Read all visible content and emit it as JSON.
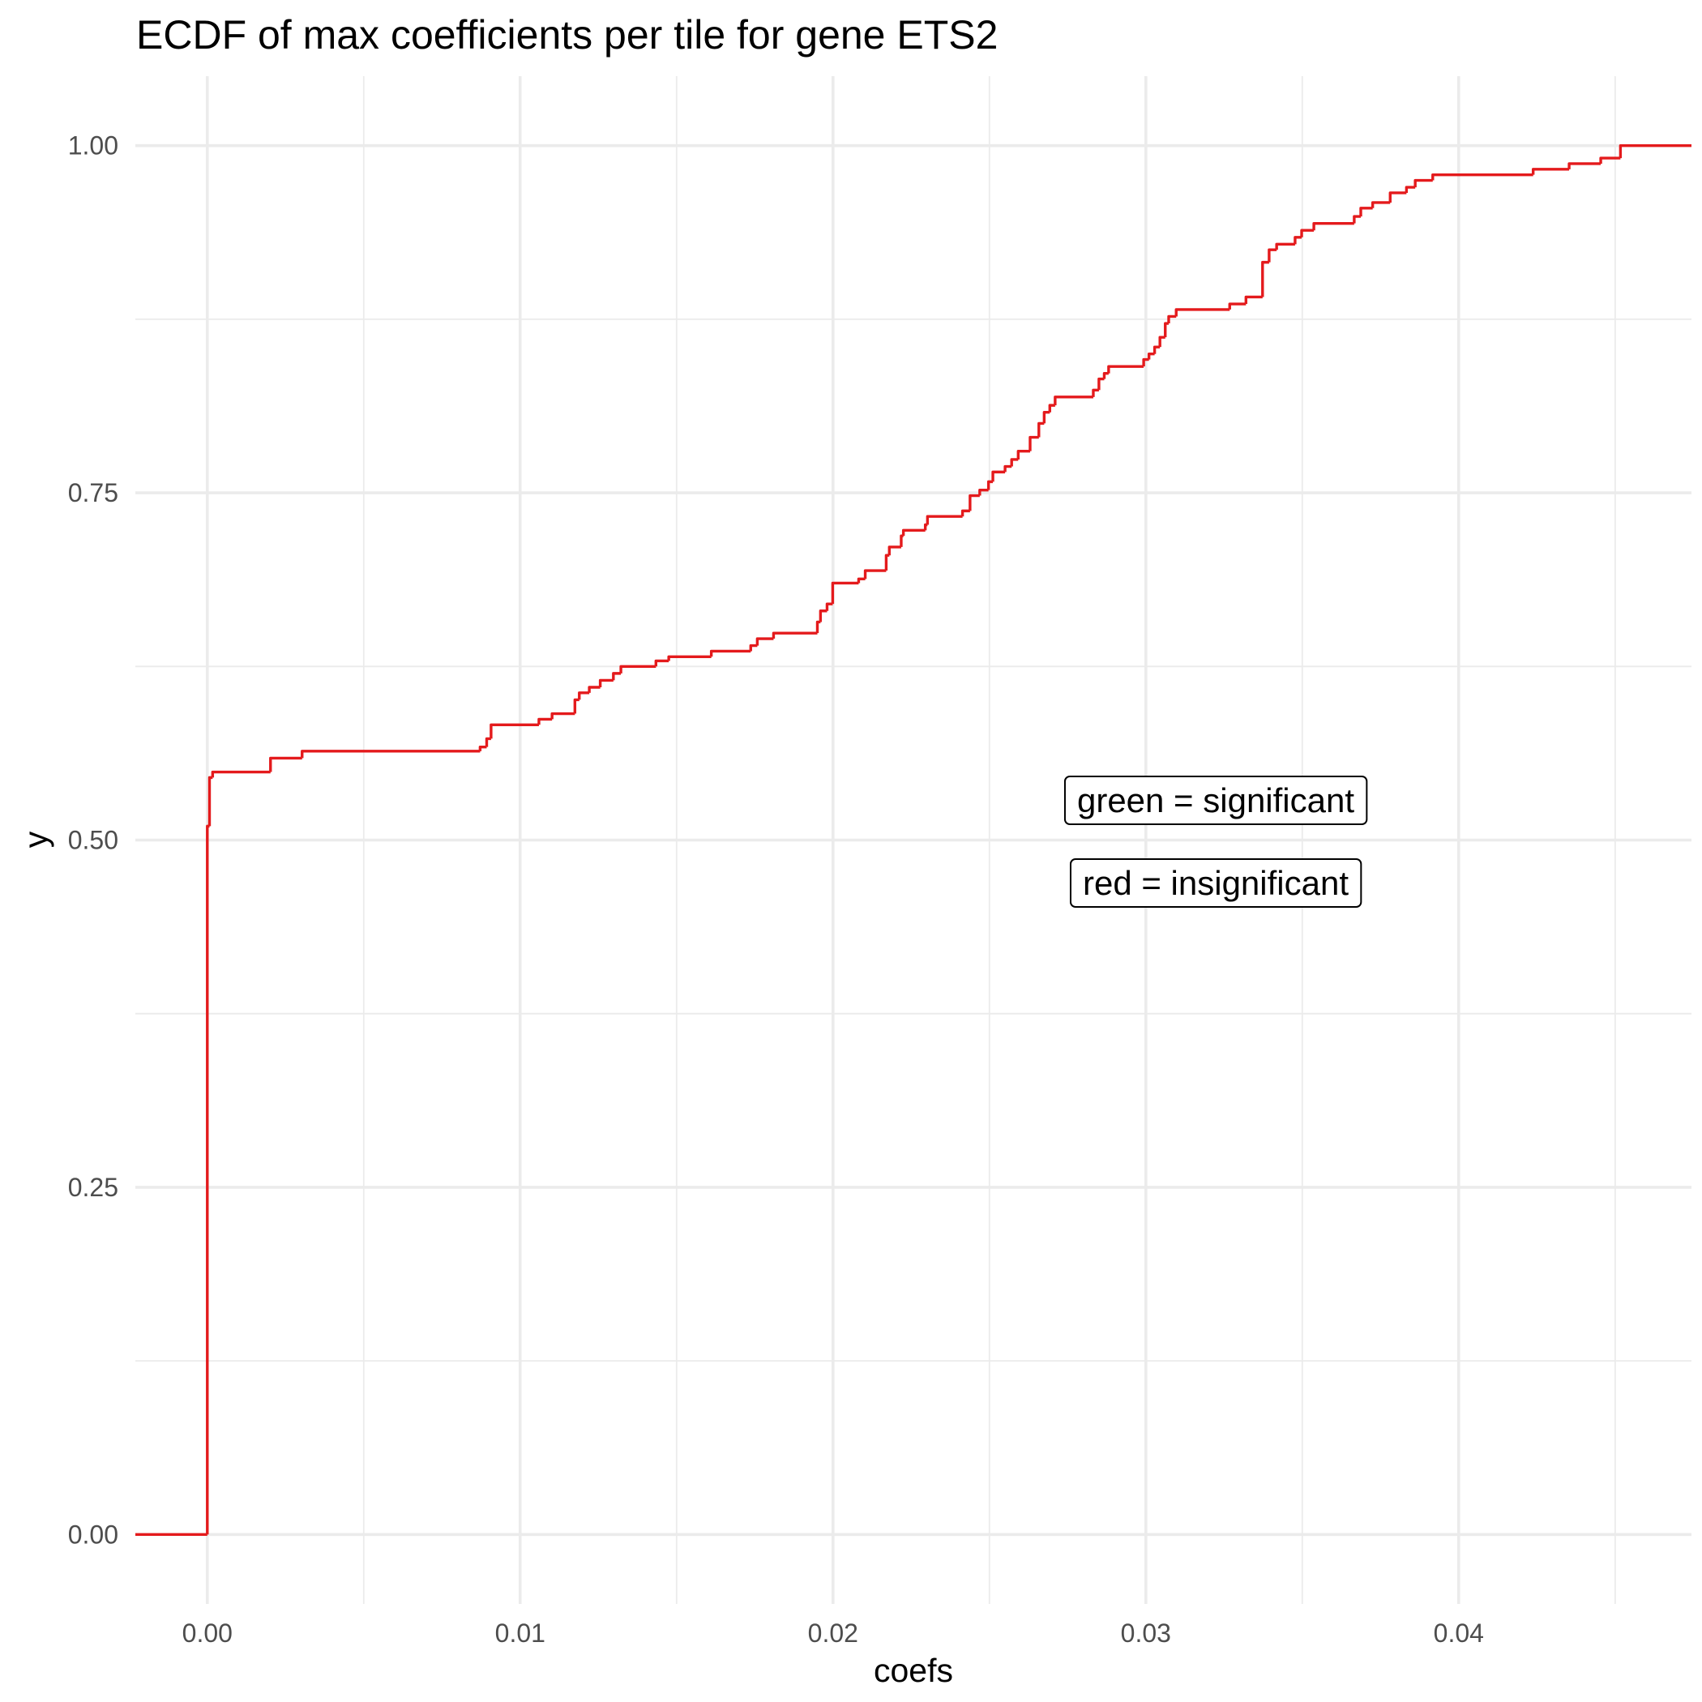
{
  "chart_data": {
    "type": "ecdf",
    "title": "ECDF of max coefficients per tile for gene ETS2",
    "x_label": "coefs",
    "y_label": "y",
    "color": "#e41a1c",
    "grid": true,
    "xlim": [
      -0.0023,
      0.04744
    ],
    "ylim": [
      -0.05,
      1.05
    ],
    "xticks": [
      {
        "value": 0,
        "label": "0.00"
      },
      0.01,
      0.02,
      0.03,
      0.04
    ],
    "yticks": [
      {
        "value": 0,
        "label": "0.00"
      },
      0.25,
      {
        "value": 0.5,
        "label": "0.50"
      },
      0.75,
      {
        "value": 1,
        "label": "1.00"
      }
    ],
    "annotations": [
      "green = significant",
      "red = insignificant"
    ],
    "x": [
      0,
      7e-05,
      0.00017,
      0.00202,
      0.00303,
      0.00872,
      0.00893,
      0.00907,
      0.0106,
      0.01102,
      0.01175,
      0.01189,
      0.01221,
      0.01256,
      0.01298,
      0.01322,
      0.01434,
      0.01475,
      0.01611,
      0.01737,
      0.01758,
      0.0181,
      0.0195,
      0.0196,
      0.01981,
      0.01999,
      0.02082,
      0.02103,
      0.0217,
      0.0218,
      0.02218,
      0.02225,
      0.02295,
      0.02302,
      0.02414,
      0.02438,
      0.02469,
      0.02497,
      0.02511,
      0.0255,
      0.02571,
      0.02592,
      0.0263,
      0.02658,
      0.02675,
      0.02693,
      0.0271,
      0.02832,
      0.0285,
      0.02867,
      0.02881,
      0.02993,
      0.0301,
      0.03028,
      0.03045,
      0.03062,
      0.03073,
      0.03097,
      0.03268,
      0.0332,
      0.03373,
      0.03394,
      0.03418,
      0.03477,
      0.03498,
      0.03537,
      0.03666,
      0.03687,
      0.03725,
      0.03781,
      0.03833,
      0.03861,
      0.03917,
      0.04238,
      0.04353,
      0.04454,
      0.04517
    ],
    "values": [
      0.51,
      0.545,
      0.549,
      0.559,
      0.564,
      0.567,
      0.573,
      0.583,
      0.587,
      0.591,
      0.601,
      0.606,
      0.61,
      0.615,
      0.62,
      0.625,
      0.629,
      0.632,
      0.636,
      0.64,
      0.645,
      0.649,
      0.657,
      0.665,
      0.67,
      0.685,
      0.688,
      0.694,
      0.705,
      0.711,
      0.719,
      0.723,
      0.727,
      0.733,
      0.737,
      0.748,
      0.752,
      0.758,
      0.765,
      0.769,
      0.774,
      0.78,
      0.79,
      0.8,
      0.808,
      0.813,
      0.819,
      0.824,
      0.832,
      0.836,
      0.841,
      0.846,
      0.85,
      0.855,
      0.862,
      0.872,
      0.877,
      0.882,
      0.886,
      0.891,
      0.916,
      0.925,
      0.929,
      0.934,
      0.939,
      0.944,
      0.949,
      0.955,
      0.959,
      0.966,
      0.97,
      0.975,
      0.979,
      0.983,
      0.987,
      0.991,
      1
    ]
  }
}
